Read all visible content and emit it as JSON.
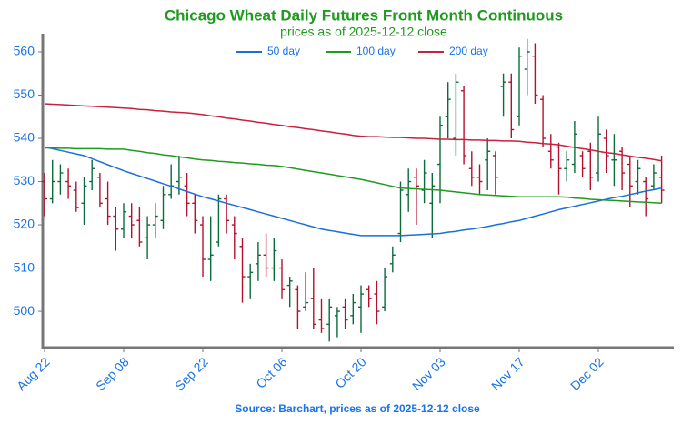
{
  "chart_data": {
    "type": "ohlc",
    "title": "Chicago Wheat Daily Futures Front Month Continuous",
    "subtitle": "prices as of 2025-12-12 close",
    "source": "Source: Barchart, prices as of 2025-12-12 close",
    "legend": "top",
    "ylim": [
      491.6,
      564.2
    ],
    "yticks": [
      500,
      510,
      520,
      530,
      540,
      550,
      560
    ],
    "categories": [
      "Aug 22",
      null,
      null,
      null,
      null,
      null,
      null,
      null,
      null,
      null,
      "Sep 08",
      null,
      null,
      null,
      null,
      null,
      null,
      null,
      null,
      null,
      "Sep 22",
      null,
      null,
      null,
      null,
      null,
      null,
      null,
      null,
      null,
      "Oct 06",
      null,
      null,
      null,
      null,
      null,
      null,
      null,
      null,
      null,
      "Oct 20",
      null,
      null,
      null,
      null,
      null,
      null,
      null,
      null,
      null,
      "Nov 03",
      null,
      null,
      null,
      null,
      null,
      null,
      null,
      null,
      null,
      "Nov 17",
      null,
      null,
      null,
      null,
      null,
      null,
      null,
      null,
      null,
      "Dec 02",
      null,
      null,
      null,
      null,
      null,
      null,
      null,
      null
    ],
    "ohlc": {
      "up_color": "#0b6b3a",
      "down_color": "#b3122e",
      "open": [
        530,
        526,
        530,
        530,
        528,
        525,
        530,
        531,
        526,
        522,
        519,
        522,
        521,
        517,
        520,
        521,
        527,
        530,
        529,
        525,
        520,
        512,
        516,
        526,
        520,
        515,
        508,
        511,
        513,
        510,
        510,
        506,
        505,
        501,
        503,
        498,
        497,
        499,
        501,
        499,
        501,
        505,
        504,
        501,
        511,
        518,
        527,
        531,
        528,
        525,
        534,
        545,
        540,
        551,
        533,
        531,
        535,
        536,
        552,
        553,
        545,
        556,
        559,
        549,
        537,
        538,
        533,
        534,
        536,
        537,
        532,
        540,
        535,
        537,
        534,
        530,
        530,
        529,
        531
      ],
      "high": [
        532,
        535,
        534,
        533,
        530,
        531,
        535,
        532,
        530,
        524,
        525,
        525,
        524,
        522,
        525,
        529,
        534,
        536,
        532,
        527,
        522,
        522,
        527,
        527,
        522,
        517,
        511,
        516,
        518,
        517,
        512,
        508,
        506,
        509,
        510,
        503,
        503,
        501,
        503,
        504,
        506,
        506,
        507,
        510,
        515,
        530,
        533,
        533,
        535,
        532,
        545,
        553,
        555,
        552,
        537,
        534,
        540,
        537,
        555,
        555,
        561,
        563,
        562,
        550,
        541,
        539,
        537,
        544,
        537,
        539,
        545,
        542,
        541,
        538,
        536,
        535,
        531,
        534,
        536
      ],
      "low": [
        522,
        525,
        527,
        526,
        523,
        520,
        528,
        524,
        520,
        514,
        517,
        517,
        515,
        512,
        517,
        519,
        526,
        527,
        522,
        518,
        508,
        507,
        515,
        518,
        512,
        502,
        503,
        507,
        508,
        507,
        503,
        501,
        496,
        500,
        496,
        495,
        493,
        494,
        496,
        497,
        495,
        501,
        497,
        500,
        509,
        516,
        523,
        520,
        525,
        517,
        525,
        540,
        536,
        534,
        529,
        527,
        528,
        527,
        545,
        540,
        543,
        550,
        548,
        538,
        533,
        527,
        530,
        532,
        531,
        528,
        530,
        532,
        529,
        528,
        524,
        527,
        522,
        528,
        525
      ],
      "close": [
        526,
        530,
        532,
        529,
        524,
        529,
        533,
        525,
        522,
        519,
        523,
        520,
        516,
        520,
        522,
        527,
        529,
        531,
        525,
        521,
        512,
        513,
        526,
        521,
        518,
        508,
        509,
        513,
        510,
        514,
        505,
        507,
        500,
        502,
        497,
        496,
        501,
        500,
        498,
        502,
        504,
        503,
        500,
        508,
        513,
        528,
        530,
        529,
        532,
        529,
        543,
        549,
        553,
        536,
        531,
        530,
        537,
        531,
        553,
        542,
        559,
        560,
        550,
        540,
        535,
        533,
        535,
        541,
        533,
        531,
        541,
        536,
        535,
        532,
        529,
        533,
        526,
        532,
        528
      ]
    },
    "series": [
      {
        "name": "50 day",
        "color": "#1a6fd8",
        "values": [
          538,
          537.6,
          537.2,
          536.8,
          536.4,
          536,
          535.3,
          534.6,
          533.9,
          533.2,
          532.5,
          531.9,
          531.3,
          530.7,
          530.1,
          529.5,
          528.9,
          528.3,
          527.7,
          527.1,
          526.5,
          526,
          525.5,
          525,
          524.5,
          524,
          523.5,
          523,
          522.5,
          522,
          521.5,
          521,
          520.5,
          520,
          519.5,
          519,
          518.7,
          518.4,
          518.1,
          517.8,
          517.5,
          517.5,
          517.5,
          517.5,
          517.5,
          517.5,
          517.6,
          517.7,
          517.8,
          517.9,
          518,
          518.3,
          518.5,
          518.8,
          519,
          519.3,
          519.6,
          520,
          520.3,
          520.7,
          521,
          521.5,
          522,
          522.5,
          523,
          523.5,
          523.9,
          524.3,
          524.7,
          525.1,
          525.5,
          525.9,
          526.3,
          526.6,
          527,
          527.4,
          527.8,
          528.1,
          528.5
        ]
      },
      {
        "name": "100 day",
        "color": "#1f9a1f",
        "values": [
          537.8,
          537.8,
          537.7,
          537.7,
          537.6,
          537.6,
          537.6,
          537.6,
          537.5,
          537.5,
          537.5,
          537.2,
          537,
          536.7,
          536.5,
          536.2,
          536,
          535.7,
          535.5,
          535.2,
          535,
          534.9,
          534.7,
          534.6,
          534.4,
          534.3,
          534.1,
          534,
          533.8,
          533.7,
          533.5,
          533.2,
          532.9,
          532.6,
          532.3,
          532,
          531.7,
          531.4,
          531.1,
          530.8,
          530.5,
          530.1,
          529.7,
          529.3,
          528.9,
          528.5,
          528.4,
          528.3,
          528.2,
          528.1,
          528,
          527.8,
          527.6,
          527.4,
          527.2,
          527,
          526.9,
          526.8,
          526.7,
          526.6,
          526.5,
          526.5,
          526.5,
          526.5,
          526.5,
          526.5,
          526.4,
          526.2,
          526.1,
          525.9,
          525.8,
          525.7,
          525.6,
          525.5,
          525.4,
          525.3,
          525.2,
          525.1,
          525
        ]
      },
      {
        "name": "200 day",
        "color": "#c8203f",
        "values": [
          548,
          547.9,
          547.8,
          547.7,
          547.6,
          547.5,
          547.4,
          547.3,
          547.2,
          547.1,
          547,
          546.9,
          546.7,
          546.6,
          546.4,
          546.3,
          546.1,
          546,
          545.9,
          545.7,
          545.5,
          545.2,
          545,
          544.7,
          544.5,
          544.2,
          544,
          543.7,
          543.5,
          543.2,
          543,
          542.7,
          542.5,
          542.2,
          542,
          541.7,
          541.5,
          541.2,
          541,
          540.7,
          540.5,
          540.4,
          540.4,
          540.3,
          540.2,
          540.2,
          540.1,
          540,
          540,
          539.9,
          539.8,
          539.8,
          539.7,
          539.7,
          539.6,
          539.6,
          539.5,
          539.5,
          539.4,
          539.4,
          539.3,
          539.1,
          539,
          538.8,
          538.7,
          538.5,
          538.2,
          537.9,
          537.6,
          537.3,
          537,
          536.7,
          536.5,
          536.2,
          535.9,
          535.6,
          535.4,
          535.1,
          534.8
        ]
      }
    ]
  }
}
